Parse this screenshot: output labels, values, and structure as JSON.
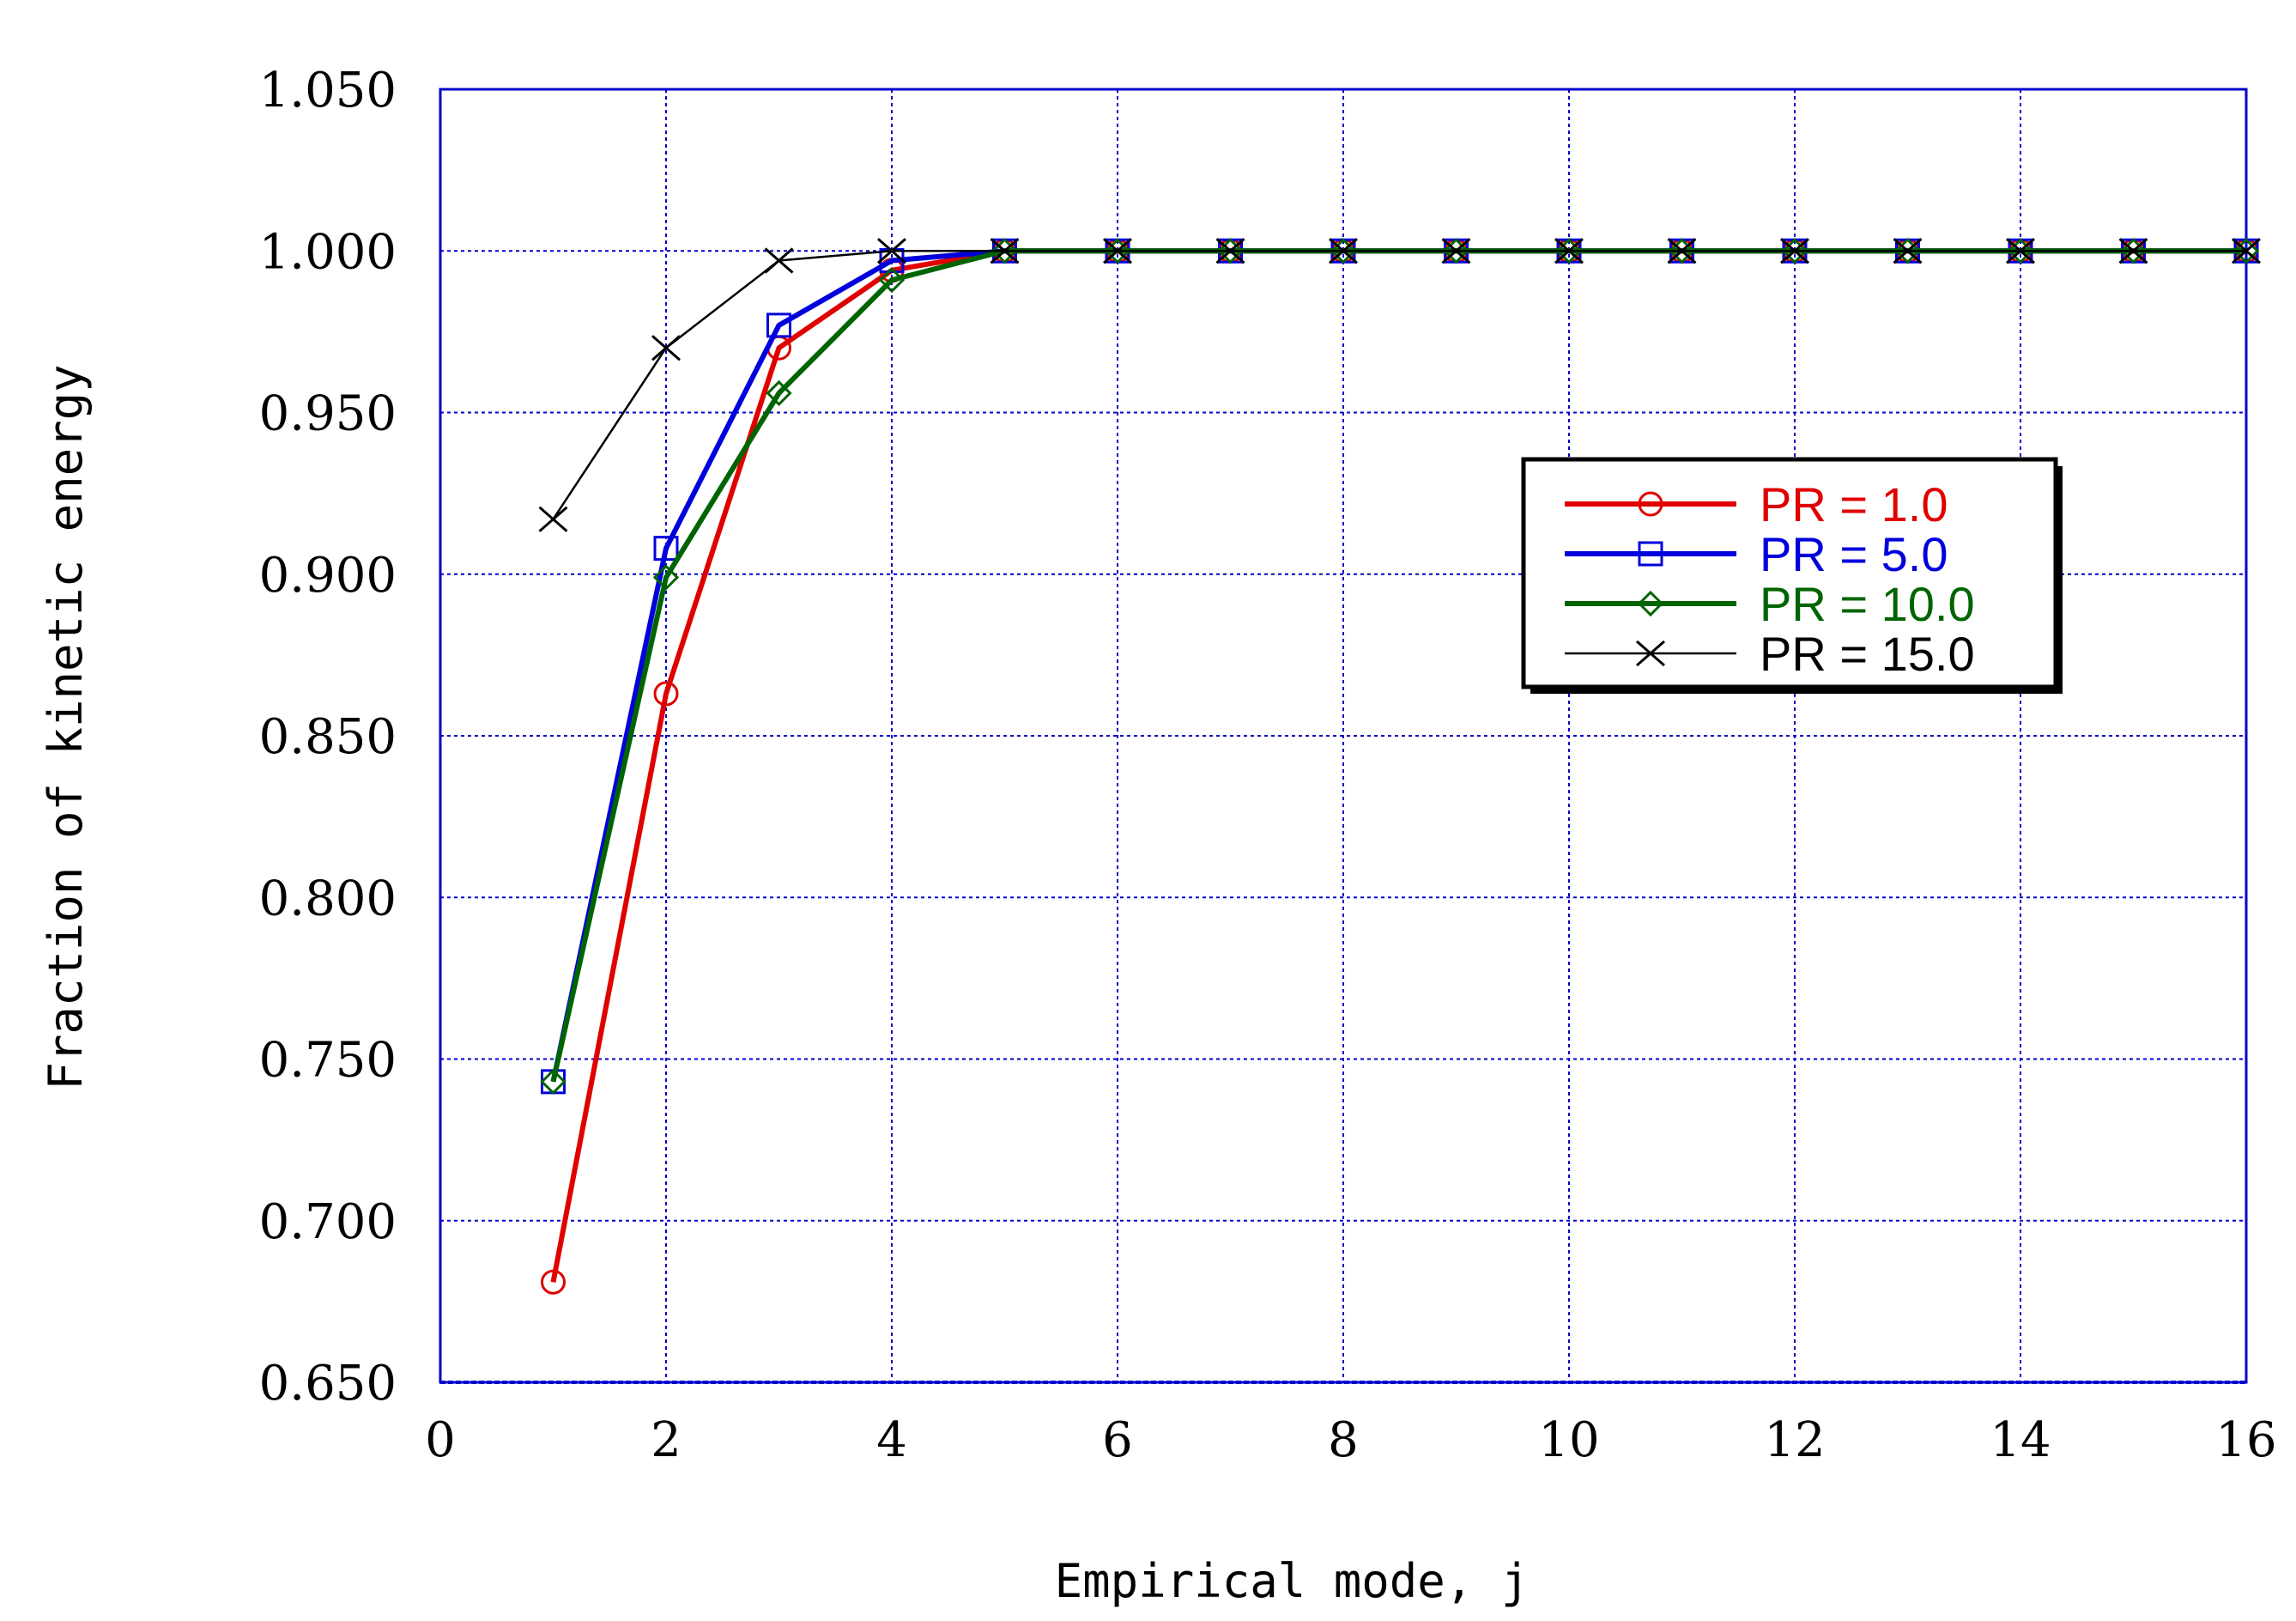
{
  "chart_data": {
    "type": "line",
    "title": "",
    "xlabel": "Empirical mode, j",
    "ylabel": "Fraction of kinetic energy",
    "xlim": [
      0,
      16
    ],
    "ylim": [
      0.65,
      1.05
    ],
    "x_ticks": [
      "0",
      "2",
      "4",
      "6",
      "8",
      "10",
      "12",
      "14",
      "16"
    ],
    "y_ticks": [
      "0.650",
      "0.700",
      "0.750",
      "0.800",
      "0.850",
      "0.900",
      "0.950",
      "1.000",
      "1.050"
    ],
    "grid": true,
    "legend_position": "right",
    "series": [
      {
        "name": "PR = 1.0",
        "color": "#e00000",
        "marker": "circle",
        "x": [
          1,
          2,
          3,
          4,
          5,
          6,
          7,
          8,
          9,
          10,
          11,
          12,
          13,
          14,
          15,
          16
        ],
        "y": [
          0.681,
          0.863,
          0.97,
          0.994,
          1.0,
          1.0,
          1.0,
          1.0,
          1.0,
          1.0,
          1.0,
          1.0,
          1.0,
          1.0,
          1.0,
          1.0
        ]
      },
      {
        "name": "PR = 5.0",
        "color": "#0000dd",
        "marker": "square",
        "x": [
          1,
          2,
          3,
          4,
          5,
          6,
          7,
          8,
          9,
          10,
          11,
          12,
          13,
          14,
          15,
          16
        ],
        "y": [
          0.743,
          0.908,
          0.977,
          0.997,
          1.0,
          1.0,
          1.0,
          1.0,
          1.0,
          1.0,
          1.0,
          1.0,
          1.0,
          1.0,
          1.0,
          1.0
        ]
      },
      {
        "name": "PR = 10.0",
        "color": "#006400",
        "marker": "diamond",
        "x": [
          1,
          2,
          3,
          4,
          5,
          6,
          7,
          8,
          9,
          10,
          11,
          12,
          13,
          14,
          15,
          16
        ],
        "y": [
          0.743,
          0.899,
          0.956,
          0.991,
          1.0,
          1.0,
          1.0,
          1.0,
          1.0,
          1.0,
          1.0,
          1.0,
          1.0,
          1.0,
          1.0,
          1.0
        ]
      },
      {
        "name": "PR = 15.0",
        "color": "#000000",
        "marker": "x",
        "x": [
          1,
          2,
          3,
          4,
          5,
          6,
          7,
          8,
          9,
          10,
          11,
          12,
          13,
          14,
          15,
          16
        ],
        "y": [
          0.917,
          0.97,
          0.997,
          1.0,
          1.0,
          1.0,
          1.0,
          1.0,
          1.0,
          1.0,
          1.0,
          1.0,
          1.0,
          1.0,
          1.0,
          1.0
        ]
      }
    ]
  }
}
